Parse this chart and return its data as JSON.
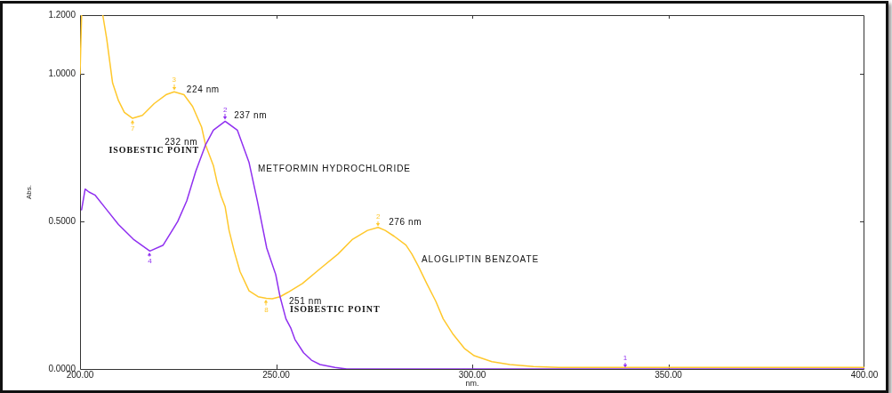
{
  "chart_data": {
    "type": "line",
    "xlabel": "nm.",
    "ylabel": "Abs.",
    "xlim": [
      200,
      400
    ],
    "xticks": [
      {
        "value": 200,
        "label": "200.00"
      },
      {
        "value": 250,
        "label": "250.00"
      },
      {
        "value": 300,
        "label": "300.00"
      },
      {
        "value": 350,
        "label": "350.00"
      },
      {
        "value": 400,
        "label": "400.00"
      }
    ],
    "ylim": [
      0,
      1.2
    ],
    "yticks": [
      {
        "value": 0,
        "label": "0.0000"
      },
      {
        "value": 0.5,
        "label": "0.5000"
      },
      {
        "value": 1,
        "label": "1.0000"
      },
      {
        "value": 1.2,
        "label": "1.2000"
      }
    ],
    "series": [
      {
        "name": "METFORMIN HYDROCHLORIDE",
        "color": "#9030f0",
        "x": [
          200.4,
          201.3,
          202.3,
          203.8,
          206.8,
          209.8,
          213.6,
          217.8,
          221.2,
          224.9,
          227.2,
          229.5,
          232,
          234,
          237,
          240.1,
          243.1,
          245.2,
          247.6,
          249.9,
          251,
          252.5,
          253.7,
          254.8,
          257,
          259,
          261.2,
          265,
          268,
          339,
          400
        ],
        "values": [
          0.54,
          0.61,
          0.6,
          0.59,
          0.54,
          0.49,
          0.44,
          0.4,
          0.42,
          0.5,
          0.57,
          0.67,
          0.76,
          0.81,
          0.84,
          0.81,
          0.7,
          0.57,
          0.41,
          0.32,
          0.245,
          0.17,
          0.14,
          0.1,
          0.055,
          0.03,
          0.015,
          0.005,
          0,
          0,
          0
        ]
      },
      {
        "name": "ALOGLIPTIN BENZOATE",
        "color": "#ffc82c",
        "x": [
          200,
          200.4,
          203,
          205.8,
          206.8,
          208.3,
          209.8,
          211.3,
          213.4,
          215.9,
          218.9,
          221.9,
          224,
          226.5,
          228.7,
          231,
          232,
          234,
          235,
          236,
          237,
          238,
          239.3,
          240.8,
          243.1,
          245.4,
          247.5,
          249,
          251,
          253,
          256.7,
          261.2,
          265.8,
          269.5,
          273.3,
          276,
          277.8,
          280.1,
          283.1,
          284.6,
          286.2,
          288.4,
          290.7,
          292.6,
          295,
          298,
          300.5,
          305,
          309.6,
          315.6,
          322,
          400
        ],
        "values": [
          1.0,
          1.2,
          null,
          1.2,
          1.12,
          0.97,
          0.91,
          0.87,
          0.85,
          0.86,
          0.9,
          0.93,
          0.94,
          0.93,
          0.89,
          0.82,
          0.76,
          0.69,
          0.63,
          0.585,
          0.55,
          0.47,
          0.4,
          0.33,
          0.265,
          0.245,
          0.24,
          0.238,
          0.245,
          0.26,
          0.29,
          0.34,
          0.39,
          0.44,
          0.47,
          0.48,
          0.47,
          0.45,
          0.42,
          0.39,
          0.35,
          0.29,
          0.23,
          0.17,
          0.12,
          0.07,
          0.045,
          0.025,
          0.015,
          0.008,
          0.005,
          0.005
        ]
      }
    ],
    "annotations": [
      {
        "text": "3",
        "x": 224,
        "y": 0.94
      },
      {
        "text": "224 nm",
        "x": 224,
        "y": 0.94
      },
      {
        "text": "7",
        "x": 213.4,
        "y": 0.85
      },
      {
        "text": "2",
        "x": 237,
        "y": 0.84
      },
      {
        "text": "237 nm",
        "x": 237,
        "y": 0.84
      },
      {
        "text": "232 nm",
        "x": 232,
        "y": 0.76
      },
      {
        "text": "ISOBESTIC POINT",
        "x": 232,
        "y": 0.76
      },
      {
        "text": "4",
        "x": 217.8,
        "y": 0.4
      },
      {
        "text": "8",
        "x": 247.5,
        "y": 0.24
      },
      {
        "text": "251 nm",
        "x": 251,
        "y": 0.245
      },
      {
        "text": "ISOBESTIC POINT",
        "x": 251,
        "y": 0.245
      },
      {
        "text": "2",
        "x": 276,
        "y": 0.48
      },
      {
        "text": "276 nm",
        "x": 276,
        "y": 0.48
      },
      {
        "text": "1",
        "x": 339,
        "y": 0
      }
    ]
  }
}
